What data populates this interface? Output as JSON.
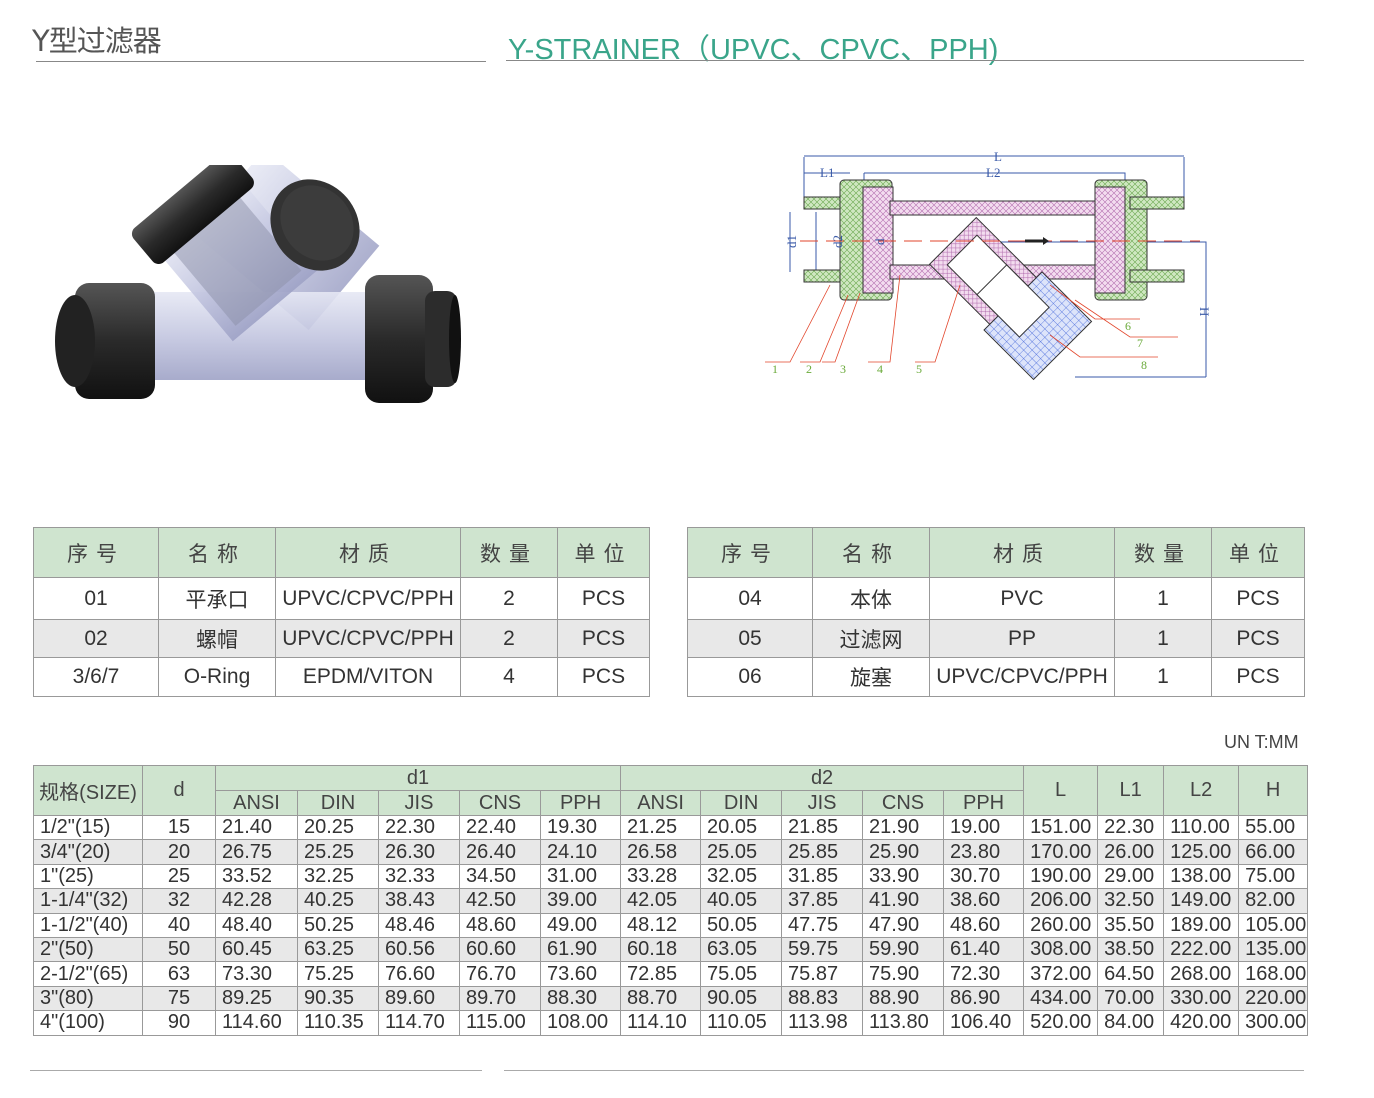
{
  "header": {
    "title_cn": "Y型过滤器",
    "title_en": "Y-STRAINER（UPVC、CPVC、PPH)"
  },
  "diagram": {
    "labels": {
      "L": "L",
      "L1": "L1",
      "L2": "L2",
      "d1": "d1",
      "d2": "d2",
      "d": "d",
      "H": "H"
    },
    "callouts": [
      "1",
      "2",
      "3",
      "4",
      "5",
      "6",
      "7",
      "8"
    ]
  },
  "parts_left": {
    "headers": [
      "序号",
      "名称",
      "材质",
      "数量",
      "单位"
    ],
    "rows": [
      [
        "01",
        "平承口",
        "UPVC/CPVC/PPH",
        "2",
        "PCS"
      ],
      [
        "02",
        "螺帽",
        "UPVC/CPVC/PPH",
        "2",
        "PCS"
      ],
      [
        "3/6/7",
        "O-Ring",
        "EPDM/VITON",
        "4",
        "PCS"
      ]
    ]
  },
  "parts_right": {
    "headers": [
      "序号",
      "名称",
      "材质",
      "数量",
      "单位"
    ],
    "rows": [
      [
        "04",
        "本体",
        "PVC",
        "1",
        "PCS"
      ],
      [
        "05",
        "过滤网",
        "PP",
        "1",
        "PCS"
      ],
      [
        "06",
        "旋塞",
        "UPVC/CPVC/PPH",
        "1",
        "PCS"
      ]
    ]
  },
  "unit": "UN T:MM",
  "dims": {
    "h_size": "规格(SIZE)",
    "h_d": "d",
    "h_d1": "d1",
    "h_d2": "d2",
    "h_L": "L",
    "h_L1": "L1",
    "h_L2": "L2",
    "h_H": "H",
    "sub": [
      "ANSI",
      "DIN",
      "JIS",
      "CNS",
      "PPH"
    ],
    "rows": [
      [
        "1/2\"(15)",
        "15",
        "21.40",
        "20.25",
        "22.30",
        "22.40",
        "19.30",
        "21.25",
        "20.05",
        "21.85",
        "21.90",
        "19.00",
        "151.00",
        "22.30",
        "110.00",
        "55.00"
      ],
      [
        "3/4\"(20)",
        "20",
        "26.75",
        "25.25",
        "26.30",
        "26.40",
        "24.10",
        "26.58",
        "25.05",
        "25.85",
        "25.90",
        "23.80",
        "170.00",
        "26.00",
        "125.00",
        "66.00"
      ],
      [
        "1\"(25)",
        "25",
        "33.52",
        "32.25",
        "32.33",
        "34.50",
        "31.00",
        "33.28",
        "32.05",
        "31.85",
        "33.90",
        "30.70",
        "190.00",
        "29.00",
        "138.00",
        "75.00"
      ],
      [
        "1-1/4\"(32)",
        "32",
        "42.28",
        "40.25",
        "38.43",
        "42.50",
        "39.00",
        "42.05",
        "40.05",
        "37.85",
        "41.90",
        "38.60",
        "206.00",
        "32.50",
        "149.00",
        "82.00"
      ],
      [
        "1-1/2\"(40)",
        "40",
        "48.40",
        "50.25",
        "48.46",
        "48.60",
        "49.00",
        "48.12",
        "50.05",
        "47.75",
        "47.90",
        "48.60",
        "260.00",
        "35.50",
        "189.00",
        "105.00"
      ],
      [
        "2\"(50)",
        "50",
        "60.45",
        "63.25",
        "60.56",
        "60.60",
        "61.90",
        "60.18",
        "63.05",
        "59.75",
        "59.90",
        "61.40",
        "308.00",
        "38.50",
        "222.00",
        "135.00"
      ],
      [
        "2-1/2\"(65)",
        "63",
        "73.30",
        "75.25",
        "76.60",
        "76.70",
        "73.60",
        "72.85",
        "75.05",
        "75.87",
        "75.90",
        "72.30",
        "372.00",
        "64.50",
        "268.00",
        "168.00"
      ],
      [
        "3\"(80)",
        "75",
        "89.25",
        "90.35",
        "89.60",
        "89.70",
        "88.30",
        "88.70",
        "90.05",
        "88.83",
        "88.90",
        "86.90",
        "434.00",
        "70.00",
        "330.00",
        "220.00"
      ],
      [
        "4\"(100)",
        "90",
        "114.60",
        "110.35",
        "114.70",
        "115.00",
        "108.00",
        "114.10",
        "110.05",
        "113.98",
        "113.80",
        "106.40",
        "520.00",
        "84.00",
        "420.00",
        "300.00"
      ]
    ]
  },
  "colors": {
    "accent": "#3aa58a",
    "header_bg": "#cfe4cf",
    "alt_row": "#e8e8e8"
  }
}
